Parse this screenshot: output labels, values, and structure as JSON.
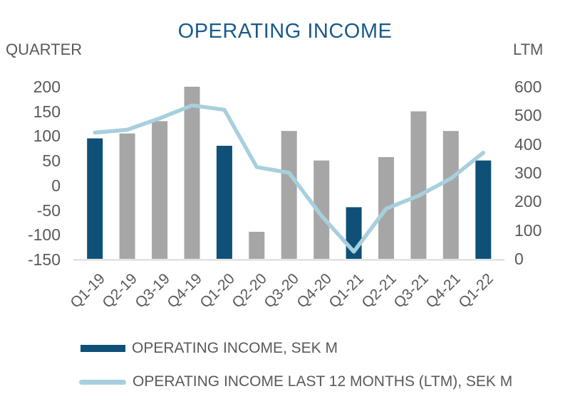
{
  "chart_data": {
    "type": "combo-bar-line",
    "title": "OPERATING INCOME",
    "categories": [
      "Q1-19",
      "Q2-19",
      "Q3-19",
      "Q4-19",
      "Q1-20",
      "Q2-20",
      "Q3-20",
      "Q4-20",
      "Q1-21",
      "Q2-21",
      "Q3-21",
      "Q4-21",
      "Q1-22"
    ],
    "series": [
      {
        "name": "OPERATING INCOME, SEK M",
        "type": "bar",
        "axis": "left",
        "values": [
          95,
          105,
          130,
          200,
          80,
          -95,
          110,
          50,
          -45,
          57,
          150,
          110,
          50
        ]
      },
      {
        "name": "OPERATING INCOME LAST 12 MONTHS (LTM), SEK M",
        "type": "line",
        "axis": "right",
        "values": [
          440,
          450,
          490,
          535,
          520,
          320,
          300,
          150,
          25,
          175,
          220,
          280,
          370
        ]
      }
    ],
    "highlighted_categories": [
      "Q1-19",
      "Q1-20",
      "Q1-21",
      "Q1-22"
    ],
    "left_axis": {
      "title": "QUARTER",
      "ticks": [
        "200",
        "150",
        "100",
        "50",
        "0",
        "-50",
        "-100",
        "-150"
      ],
      "range": [
        -150,
        200
      ],
      "tick_step": 50
    },
    "right_axis": {
      "title": "LTM",
      "ticks": [
        "600",
        "500",
        "400",
        "300",
        "200",
        "100",
        "0"
      ],
      "range": [
        0,
        600
      ],
      "tick_step": 100
    },
    "grid": false,
    "legend_position": "bottom-left",
    "bars_drawn_from": "axis-min"
  },
  "style": {
    "title_color": "#1A5A8C",
    "text_color": "#595959",
    "bar_highlight_color": "#0F5078",
    "bar_default_color": "#A6A6A6",
    "line_color": "#A8CFDD",
    "axis_line_color": "#D9D9D9",
    "background_color": "#FFFFFF"
  }
}
